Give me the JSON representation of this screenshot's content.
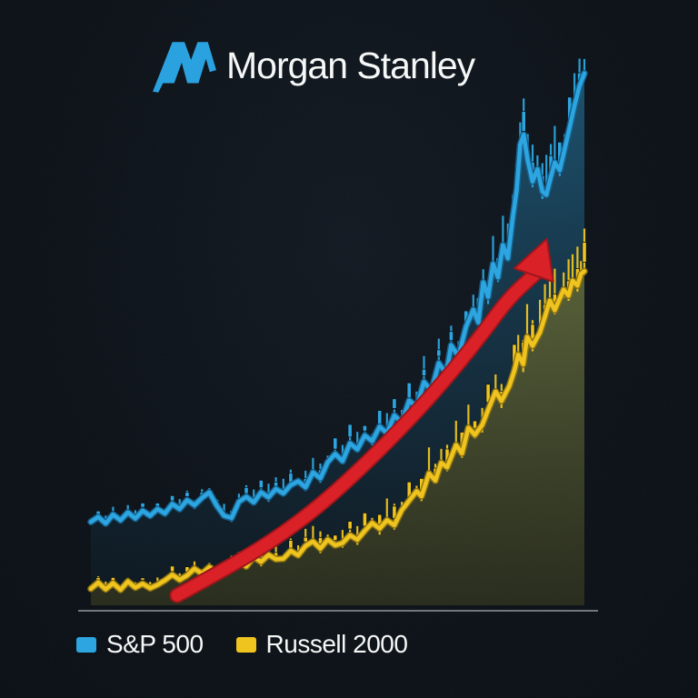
{
  "header": {
    "brand": "Morgan Stanley"
  },
  "legend": {
    "items": [
      {
        "label": "S&P 500",
        "color": "#2da5e0"
      },
      {
        "label": "Russell 2000",
        "color": "#efc41f"
      }
    ]
  },
  "colors": {
    "background": "#0c1218",
    "text": "#f6f7f7",
    "baseline": "#85898d",
    "logo_blue": "#2ba2e0",
    "arrow_red": "#da2128"
  },
  "chart_data": {
    "type": "line",
    "title": "",
    "xlabel": "",
    "ylabel": "",
    "description": "Stylized candlestick-style market illustration: S&P 500 and Russell 2000 index lines rising left-to-right with shaded areas and a red upward growth arrow annotation. No axis tick labels shown.",
    "units": "normalized: x 0-100 (time), y 0-100 (index level above baseline)",
    "legend_position": "bottom",
    "grid": false,
    "series": [
      {
        "name": "S&P 500",
        "color": "#2da5e0",
        "outline": "#15608c",
        "area_top": "rgba(42,140,190,0.55)",
        "area_bottom": "rgba(16,42,58,0.25)",
        "style": "line+candles+area",
        "points": [
          [
            0,
            15.3
          ],
          [
            1.5,
            16.2
          ],
          [
            3,
            15.0
          ],
          [
            4.5,
            16.6
          ],
          [
            6,
            15.6
          ],
          [
            7.5,
            17.0
          ],
          [
            9,
            15.9
          ],
          [
            10.5,
            17.3
          ],
          [
            12,
            16.4
          ],
          [
            13.5,
            17.6
          ],
          [
            15,
            16.8
          ],
          [
            16.5,
            18.5
          ],
          [
            18,
            17.6
          ],
          [
            19.5,
            19.2
          ],
          [
            21,
            18.3
          ],
          [
            22.5,
            19.6
          ],
          [
            24,
            20.6
          ],
          [
            25.5,
            18.2
          ],
          [
            27,
            16.4
          ],
          [
            28.5,
            16.0
          ],
          [
            30,
            18.9
          ],
          [
            31.5,
            19.8
          ],
          [
            33,
            18.8
          ],
          [
            34.5,
            20.6
          ],
          [
            36,
            19.7
          ],
          [
            37.5,
            21.2
          ],
          [
            39,
            20.4
          ],
          [
            40.5,
            21.9
          ],
          [
            42,
            22.6
          ],
          [
            43.5,
            21.5
          ],
          [
            45,
            24.2
          ],
          [
            46.5,
            23.1
          ],
          [
            48,
            26.0
          ],
          [
            49.5,
            27.5
          ],
          [
            51,
            26.2
          ],
          [
            52.5,
            29.4
          ],
          [
            54,
            28.3
          ],
          [
            55.5,
            30.8
          ],
          [
            57,
            29.8
          ],
          [
            58.5,
            32.4
          ],
          [
            60,
            31.2
          ],
          [
            61.5,
            34.4
          ],
          [
            63,
            33.1
          ],
          [
            64.5,
            37.1
          ],
          [
            66,
            35.9
          ],
          [
            67.5,
            40.4
          ],
          [
            69,
            38.8
          ],
          [
            70.5,
            43.8
          ],
          [
            72,
            41.9
          ],
          [
            73,
            47.0
          ],
          [
            74.5,
            45.0
          ],
          [
            76,
            50.3
          ],
          [
            77.5,
            53.4
          ],
          [
            78.5,
            51.1
          ],
          [
            79.5,
            58.3
          ],
          [
            80.5,
            55.7
          ],
          [
            81.5,
            61.6
          ],
          [
            82.5,
            59.2
          ],
          [
            83.5,
            65.0
          ],
          [
            84.5,
            62.6
          ],
          [
            85.5,
            70.0
          ],
          [
            86.3,
            75.0
          ],
          [
            87,
            83.0
          ],
          [
            87.7,
            84.8
          ],
          [
            88.5,
            80.2
          ],
          [
            89.5,
            76.4
          ],
          [
            90.5,
            78.6
          ],
          [
            91.5,
            74.6
          ],
          [
            92.3,
            74.0
          ],
          [
            93.2,
            77.2
          ],
          [
            94,
            79.8
          ],
          [
            95,
            78.4
          ],
          [
            96,
            82.2
          ],
          [
            97,
            86.0
          ],
          [
            98,
            90.0
          ],
          [
            99,
            93.5
          ],
          [
            100,
            95.8
          ]
        ]
      },
      {
        "name": "Russell 2000",
        "color": "#efc41f",
        "outline": "#8f7512",
        "area_top": "rgba(226,190,40,0.50)",
        "area_bottom": "rgba(105,92,22,0.30)",
        "style": "line+candles+area",
        "points": [
          [
            0,
            3.3
          ],
          [
            1.5,
            4.4
          ],
          [
            3,
            3.2
          ],
          [
            4.5,
            4.3
          ],
          [
            6,
            3.1
          ],
          [
            7.5,
            4.6
          ],
          [
            9,
            3.5
          ],
          [
            10.5,
            4.2
          ],
          [
            12,
            3.4
          ],
          [
            13.5,
            4.0
          ],
          [
            15,
            4.8
          ],
          [
            16.5,
            5.8
          ],
          [
            18,
            4.9
          ],
          [
            19.5,
            5.7
          ],
          [
            21,
            6.9
          ],
          [
            22.5,
            6.0
          ],
          [
            24,
            7.2
          ],
          [
            25.5,
            6.2
          ],
          [
            27,
            6.6
          ],
          [
            28.5,
            7.6
          ],
          [
            30,
            8.2
          ],
          [
            31.5,
            7.3
          ],
          [
            33,
            9.0
          ],
          [
            34.5,
            8.1
          ],
          [
            36,
            9.4
          ],
          [
            37.5,
            8.6
          ],
          [
            39,
            8.7
          ],
          [
            40.5,
            10.1
          ],
          [
            42,
            9.3
          ],
          [
            43.5,
            11.0
          ],
          [
            45,
            11.8
          ],
          [
            46.5,
            10.5
          ],
          [
            48,
            12.1
          ],
          [
            49.5,
            11.1
          ],
          [
            51,
            11.5
          ],
          [
            52.5,
            12.9
          ],
          [
            54,
            12.1
          ],
          [
            55.5,
            13.7
          ],
          [
            57,
            15.1
          ],
          [
            58.5,
            14.1
          ],
          [
            60,
            15.6
          ],
          [
            61.5,
            14.7
          ],
          [
            63,
            17.4
          ],
          [
            64.5,
            19.1
          ],
          [
            66,
            20.8
          ],
          [
            67,
            19.9
          ],
          [
            68.5,
            24.0
          ],
          [
            69.8,
            22.7
          ],
          [
            71,
            25.9
          ],
          [
            72.2,
            25.1
          ],
          [
            74,
            29.1
          ],
          [
            75.2,
            27.6
          ],
          [
            76.5,
            32.2
          ],
          [
            77.8,
            30.9
          ],
          [
            79.3,
            32.7
          ],
          [
            80.5,
            35.4
          ],
          [
            82,
            38.7
          ],
          [
            83.2,
            37.0
          ],
          [
            84.8,
            39.7
          ],
          [
            85.8,
            42.4
          ],
          [
            86.6,
            45.3
          ],
          [
            87.6,
            43.6
          ],
          [
            88.4,
            48.5
          ],
          [
            89.5,
            46.9
          ],
          [
            91,
            49.3
          ],
          [
            92,
            52.1
          ],
          [
            93,
            55.0
          ],
          [
            94,
            53.3
          ],
          [
            95.8,
            57.0
          ],
          [
            96.8,
            55.9
          ],
          [
            97.6,
            58.6
          ],
          [
            98.6,
            57.7
          ],
          [
            99.3,
            59.8
          ],
          [
            100,
            60.3
          ]
        ]
      }
    ],
    "annotation": {
      "type": "arrow",
      "color": "#da2128",
      "outline": "#9e161b",
      "width": 13,
      "points": [
        [
          17.5,
          2.1
        ],
        [
          27.6,
          7.0
        ],
        [
          36.8,
          11.9
        ],
        [
          46.0,
          17.9
        ],
        [
          55.2,
          25.3
        ],
        [
          64.5,
          33.6
        ],
        [
          71.8,
          40.8
        ],
        [
          79.2,
          48.9
        ],
        [
          84.7,
          55.5
        ],
        [
          89.9,
          59.7
        ]
      ],
      "head": [
        [
          92.4,
          66.1
        ],
        [
          93.7,
          58.4
        ],
        [
          85.8,
          60.8
        ]
      ]
    }
  }
}
